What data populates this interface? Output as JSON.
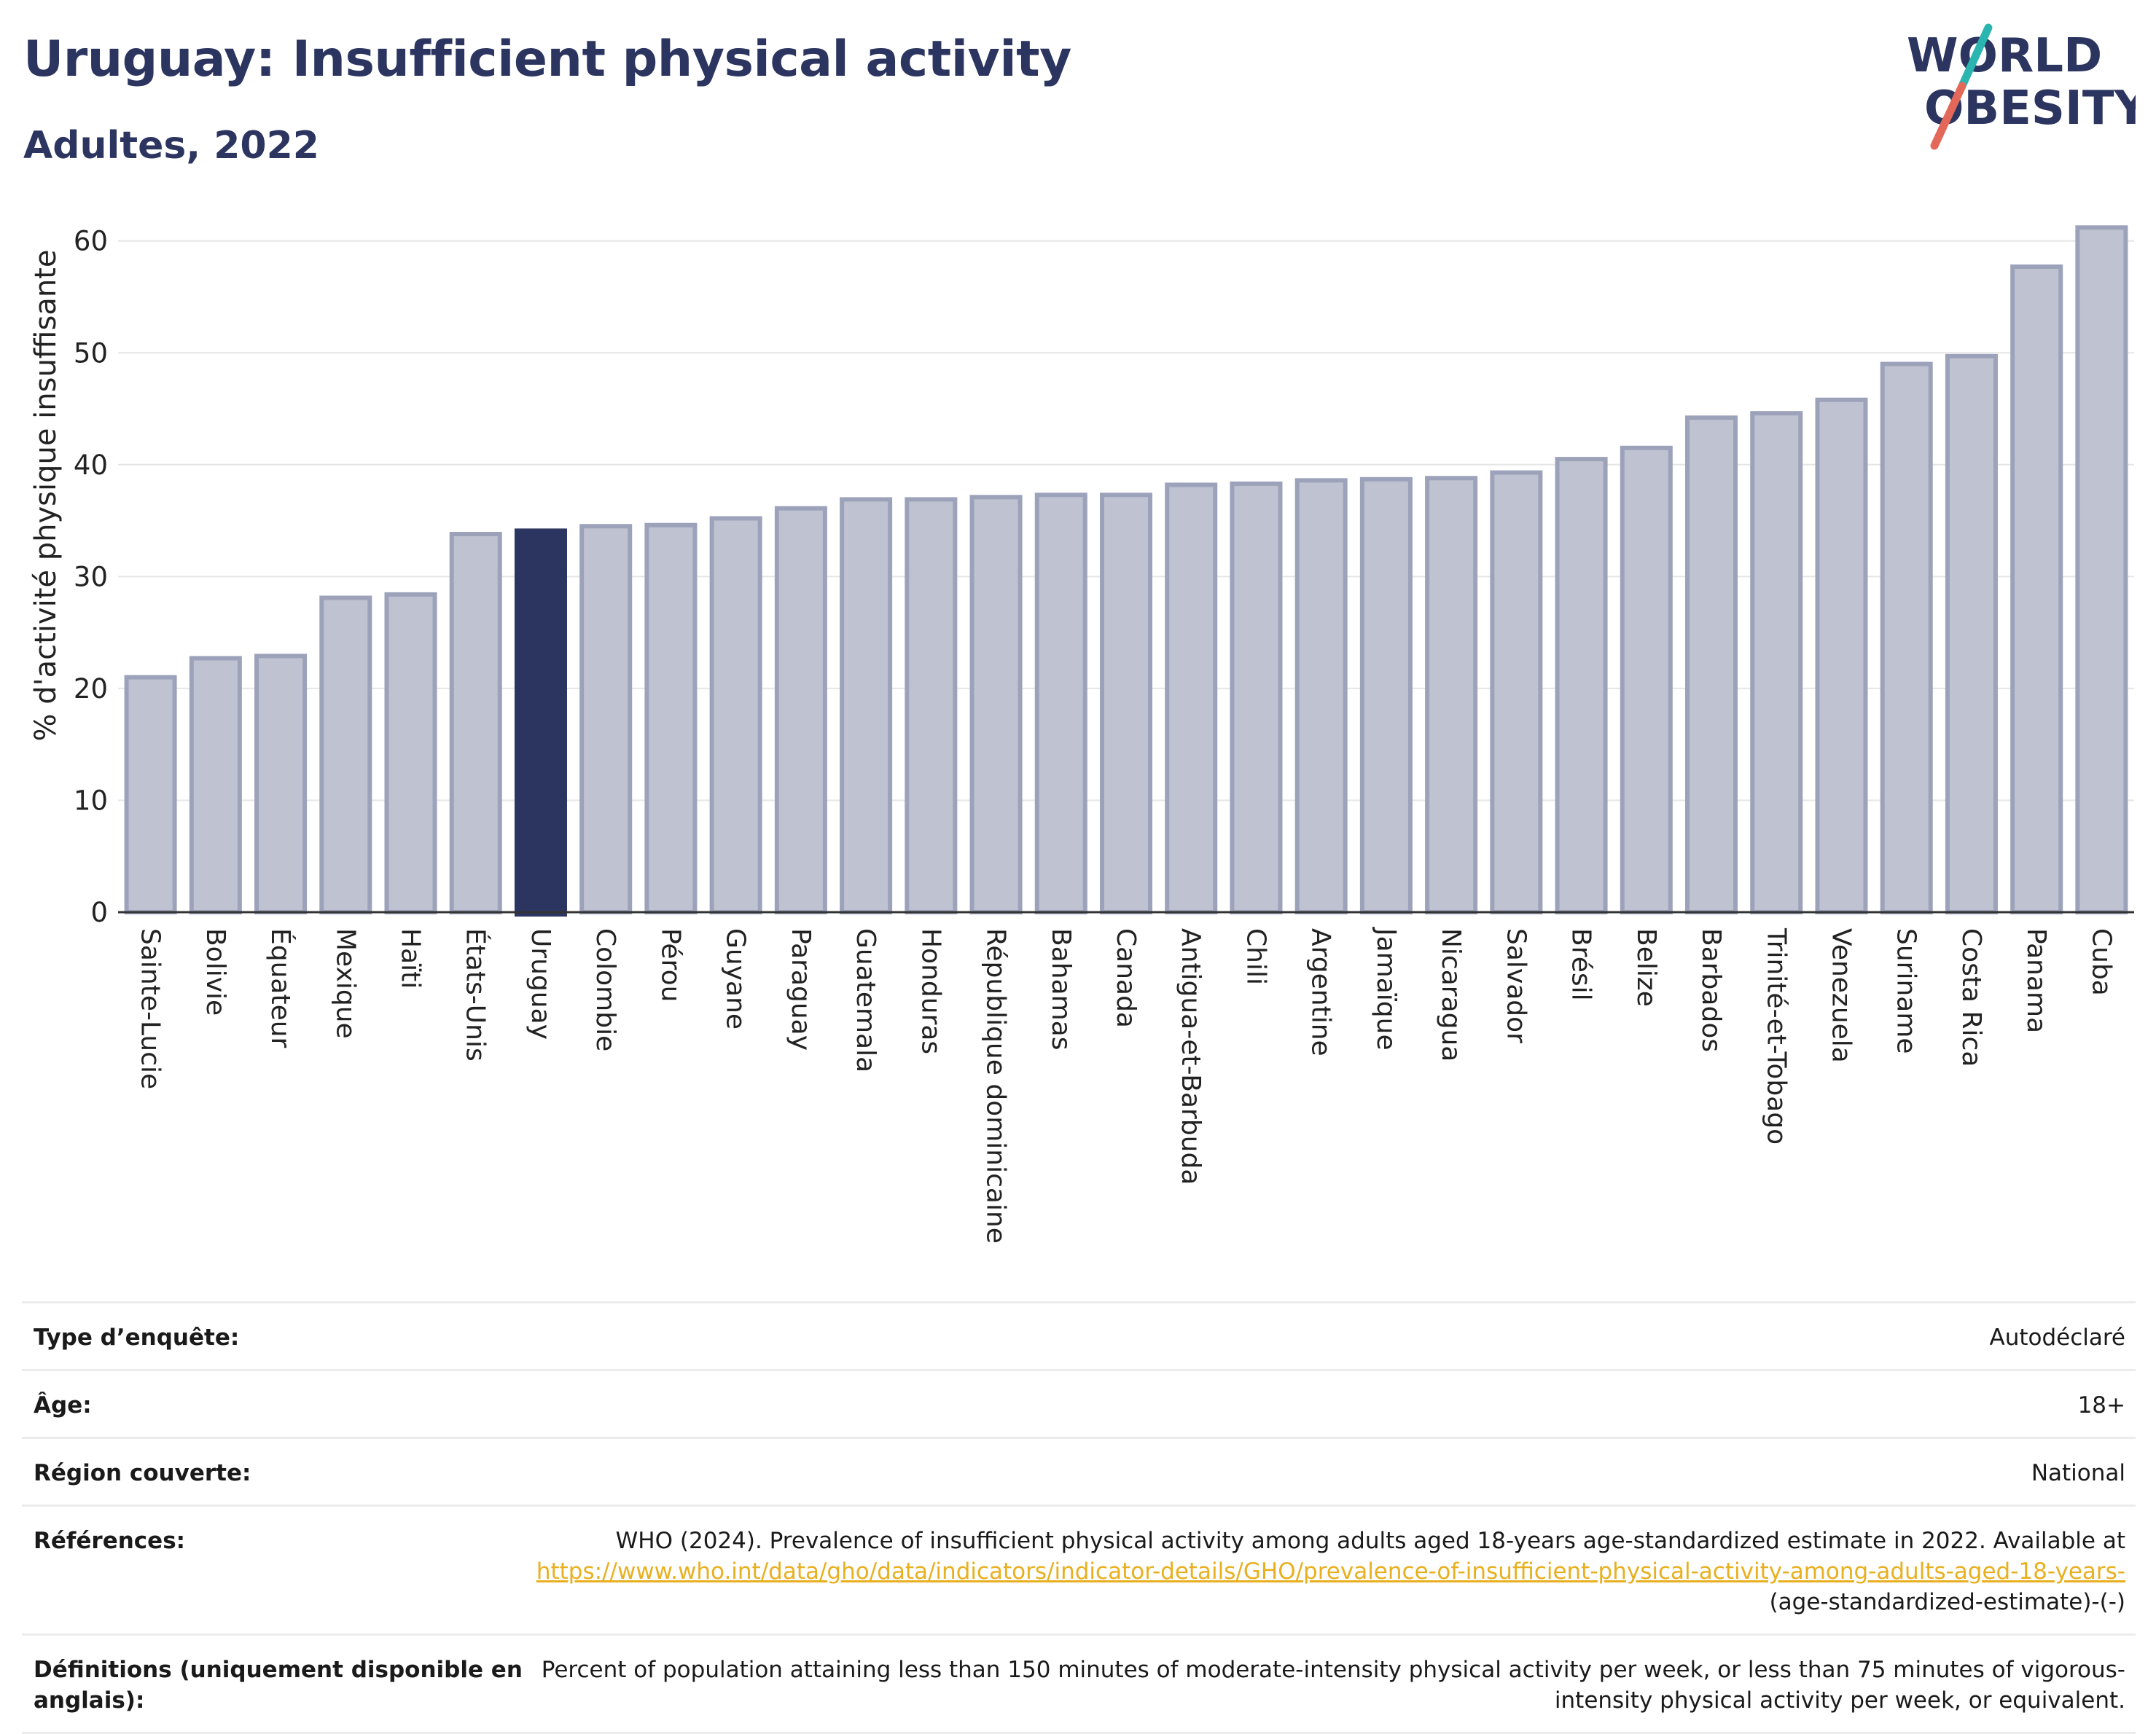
{
  "header": {
    "title": "Uruguay: Insufficient physical activity",
    "subtitle": "Adultes, 2022"
  },
  "logo": {
    "line1": "WORLD",
    "line2": "OBESITY",
    "colors": {
      "text": "#2b3560",
      "slash_teal": "#2bb5b0",
      "slash_red": "#e4685a"
    }
  },
  "chart_data": {
    "type": "bar",
    "title": "",
    "xlabel": "",
    "ylabel": "% d'activité physique insuffisante",
    "ylim": [
      0,
      62
    ],
    "yticks": [
      0,
      10,
      20,
      30,
      40,
      50,
      60
    ],
    "grid": true,
    "highlight": "Uruguay",
    "colors": {
      "bar": "#bfc2d0",
      "bar_edge": "#9da2bb",
      "highlight": "#2b3560"
    },
    "categories": [
      "Sainte-Lucie",
      "Bolivie",
      "Équateur",
      "Mexique",
      "Haïti",
      "États-Unis",
      "Uruguay",
      "Colombie",
      "Pérou",
      "Guyane",
      "Paraguay",
      "Guatemala",
      "Honduras",
      "République dominicaine",
      "Bahamas",
      "Canada",
      "Antigua-et-Barbuda",
      "Chili",
      "Argentine",
      "Jamaïque",
      "Nicaragua",
      "Salvador",
      "Brésil",
      "Belize",
      "Barbados",
      "Trinité-et-Tobago",
      "Venezuela",
      "Suriname",
      "Costa Rica",
      "Panama",
      "Cuba"
    ],
    "values": [
      21.0,
      22.7,
      22.9,
      28.1,
      28.4,
      33.8,
      34.1,
      34.5,
      34.6,
      35.2,
      36.1,
      36.9,
      36.9,
      37.1,
      37.3,
      37.3,
      38.2,
      38.3,
      38.6,
      38.7,
      38.8,
      39.3,
      40.5,
      41.5,
      44.2,
      44.6,
      45.8,
      49.0,
      49.7,
      57.7,
      61.2
    ]
  },
  "info": {
    "rows": [
      {
        "label": "Type d’enquête:",
        "value": "Autodéclaré"
      },
      {
        "label": "Âge:",
        "value": "18+"
      },
      {
        "label": "Région couverte:",
        "value": "National"
      }
    ],
    "references": {
      "label": "Références:",
      "text_before": "WHO (2024). Prevalence of insufficient physical activity among adults aged 18-years age-standardized estimate in 2022. Available at",
      "link": "https://www.who.int/data/gho/data/indicators/indicator-details/GHO/prevalence-of-insufficient-physical-activity-among-adults-aged-18-years-",
      "text_after": "(age-standardized-estimate)-(-)"
    },
    "definitions": {
      "label": "Définitions (uniquement disponible en anglais):",
      "value": "Percent of population attaining less than 150 minutes of moderate-intensity physical activity per week, or less than 75 minutes of vigorous-intensity physical activity per week, or equivalent."
    }
  }
}
